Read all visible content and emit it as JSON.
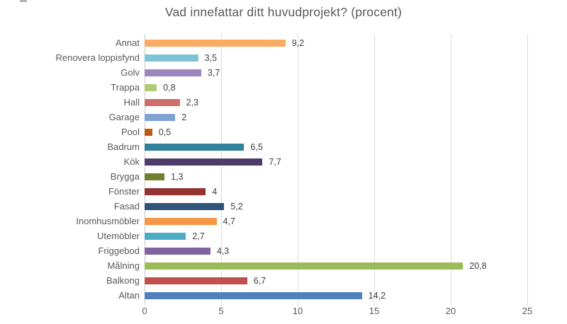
{
  "chart_data": {
    "type": "bar",
    "orientation": "horizontal",
    "title": "Vad innefattar ditt huvudprojekt? (procent)",
    "categories": [
      "Annat",
      "Renovera loppisfynd",
      "Golv",
      "Trappa",
      "Hall",
      "Garage",
      "Pool",
      "Badrum",
      "Kök",
      "Brygga",
      "Fönster",
      "Fasad",
      "Inomhusmöbler",
      "Utemöbler",
      "Friggebod",
      "Målning",
      "Balkong",
      "Altan"
    ],
    "values": [
      9.2,
      3.5,
      3.7,
      0.8,
      2.3,
      2,
      0.5,
      6.5,
      7.7,
      1.3,
      4,
      5.2,
      4.7,
      2.7,
      4.3,
      20.8,
      6.7,
      14.2
    ],
    "value_labels": [
      "9,2",
      "3,5",
      "3,7",
      "0,8",
      "2,3",
      "2",
      "0,5",
      "6,5",
      "7,7",
      "1,3",
      "4",
      "5,2",
      "4,7",
      "2,7",
      "4,3",
      "20,8",
      "6,7",
      "14,2"
    ],
    "bar_colors": [
      "#F9AB64",
      "#7EC3D4",
      "#9C84BD",
      "#AFCA74",
      "#CD706C",
      "#7FA1D5",
      "#BE5A10",
      "#2F8299",
      "#4E3B69",
      "#70802F",
      "#93322F",
      "#305477",
      "#F79646",
      "#4BACC6",
      "#8064A2",
      "#9BBB59",
      "#C0504D",
      "#4F81BD"
    ],
    "xlabel": "",
    "ylabel": "",
    "xlim": [
      0,
      25
    ],
    "x_ticks": [
      0,
      5,
      10,
      15,
      20,
      25
    ],
    "grid": "vertical-gridlines-on",
    "legend": "none",
    "colors": {
      "background": "#FFFFFF",
      "title_text": "#595959",
      "category_label_text": "#595959",
      "value_label_text": "#404040",
      "axis_tick_text": "#595959",
      "gridline": "#D9D9D9",
      "zero_axis_line": "#C9C9C9"
    }
  }
}
